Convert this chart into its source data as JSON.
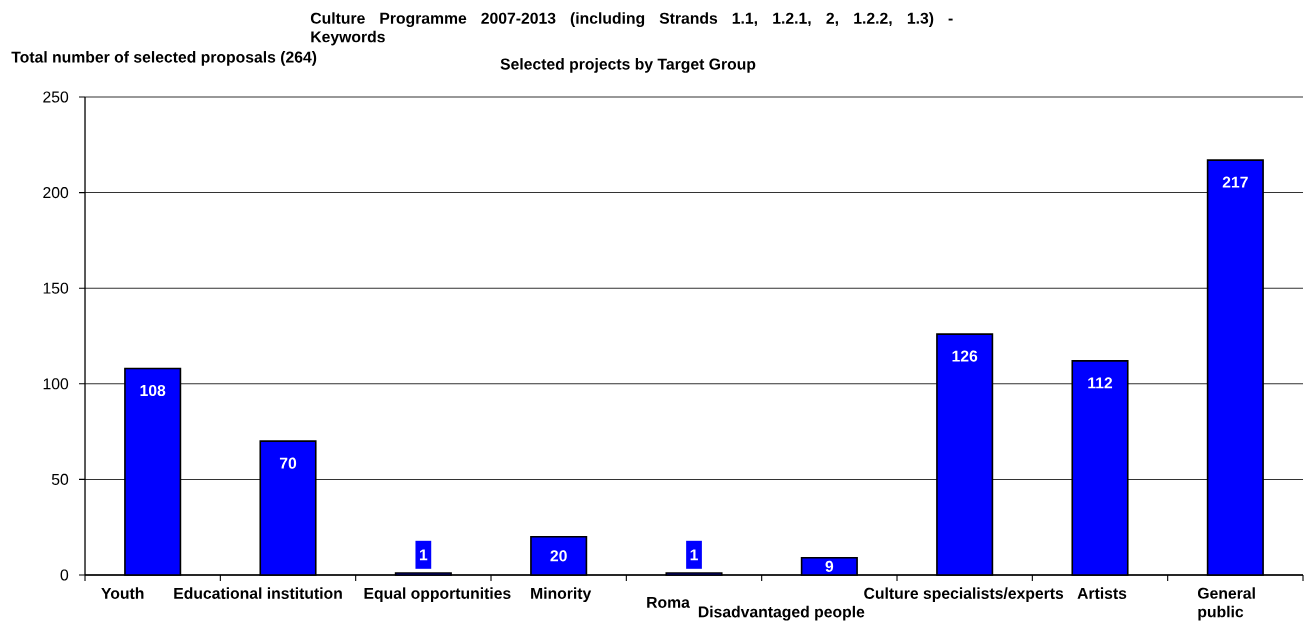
{
  "chart_data": {
    "type": "bar",
    "title": "Culture Programme 2007-2013 (including Strands 1.1, 1.2.1, 2, 1.2.2, 1.3) - Keywords",
    "subtitle": "Selected projects by Target Group",
    "annotations": [
      "Total number of selected proposals (264)"
    ],
    "categories": [
      "Youth",
      "Educational institution",
      "Equal opportunities",
      "Minority",
      "Roma",
      "Disadvantaged people",
      "Culture specialists/experts",
      "Artists",
      "General public"
    ],
    "values": [
      108,
      70,
      1,
      20,
      1,
      9,
      126,
      112,
      217
    ],
    "color": "#0000ff",
    "ylim": [
      0,
      250
    ],
    "yticks": [
      0,
      50,
      100,
      150,
      200,
      250
    ],
    "grid": "y",
    "data_labels": true
  }
}
